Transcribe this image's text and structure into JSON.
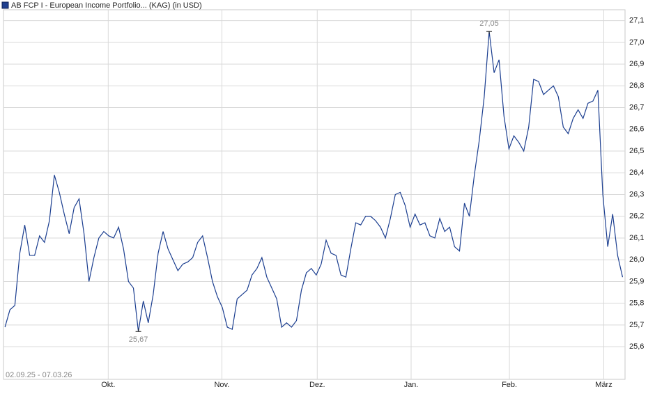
{
  "chart_data": {
    "type": "line",
    "title": "AB FCP I - European Income Portfolio... (KAG) (in USD)",
    "date_range": "02.09.25 - 07.03.26",
    "color": "#1a3d8f",
    "grid": true,
    "ylim": [
      25.45,
      27.15
    ],
    "yticks": [
      {
        "value": 25.6,
        "label": "25,6"
      },
      {
        "value": 25.7,
        "label": "25,7"
      },
      {
        "value": 25.8,
        "label": "25,8"
      },
      {
        "value": 25.9,
        "label": "25,9"
      },
      {
        "value": 26.0,
        "label": "26,0"
      },
      {
        "value": 26.1,
        "label": "26,1"
      },
      {
        "value": 26.2,
        "label": "26,2"
      },
      {
        "value": 26.3,
        "label": "26,3"
      },
      {
        "value": 26.4,
        "label": "26,4"
      },
      {
        "value": 26.5,
        "label": "26,5"
      },
      {
        "value": 26.6,
        "label": "26,6"
      },
      {
        "value": 26.7,
        "label": "26,7"
      },
      {
        "value": 26.8,
        "label": "26,8"
      },
      {
        "value": 26.9,
        "label": "26,9"
      },
      {
        "value": 27.0,
        "label": "27,0"
      },
      {
        "value": 27.1,
        "label": "27,1"
      }
    ],
    "xlim": [
      -0.3,
      125.5
    ],
    "xticks": [
      {
        "value": 20.9,
        "label": "Okt."
      },
      {
        "value": 43.9,
        "label": "Nov."
      },
      {
        "value": 63.2,
        "label": "Dez."
      },
      {
        "value": 82.2,
        "label": "Jan."
      },
      {
        "value": 102.1,
        "label": "Feb."
      },
      {
        "value": 121.2,
        "label": "März"
      }
    ],
    "values": [
      25.69,
      25.77,
      25.79,
      26.03,
      26.16,
      26.02,
      26.02,
      26.11,
      26.08,
      26.18,
      26.39,
      26.31,
      26.21,
      26.12,
      26.24,
      26.28,
      26.12,
      25.9,
      26.01,
      26.1,
      26.13,
      26.11,
      26.1,
      26.15,
      26.05,
      25.9,
      25.87,
      25.67,
      25.81,
      25.71,
      25.84,
      26.03,
      26.13,
      26.05,
      26.0,
      25.95,
      25.98,
      25.99,
      26.01,
      26.08,
      26.11,
      26.01,
      25.9,
      25.83,
      25.78,
      25.69,
      25.68,
      25.82,
      25.84,
      25.86,
      25.93,
      25.96,
      26.01,
      25.92,
      25.87,
      25.82,
      25.69,
      25.71,
      25.69,
      25.72,
      25.86,
      25.94,
      25.96,
      25.93,
      25.98,
      26.09,
      26.03,
      26.02,
      25.93,
      25.92,
      26.05,
      26.17,
      26.16,
      26.2,
      26.2,
      26.18,
      26.15,
      26.1,
      26.19,
      26.3,
      26.31,
      26.25,
      26.15,
      26.21,
      26.16,
      26.17,
      26.11,
      26.1,
      26.19,
      26.13,
      26.15,
      26.06,
      26.04,
      26.26,
      26.2,
      26.39,
      26.55,
      26.75,
      27.05,
      26.86,
      26.92,
      26.66,
      26.51,
      26.57,
      26.54,
      26.5,
      26.61,
      26.83,
      26.82,
      26.76,
      26.78,
      26.8,
      26.75,
      26.61,
      26.58,
      26.65,
      26.69,
      26.65,
      26.72,
      26.73,
      26.78,
      26.3,
      26.06,
      26.21,
      26.02,
      25.92
    ],
    "annotations": [
      {
        "label": "25,67",
        "value": 25.67,
        "position": "below"
      },
      {
        "label": "27,05",
        "value": 27.05,
        "position": "above"
      }
    ]
  }
}
